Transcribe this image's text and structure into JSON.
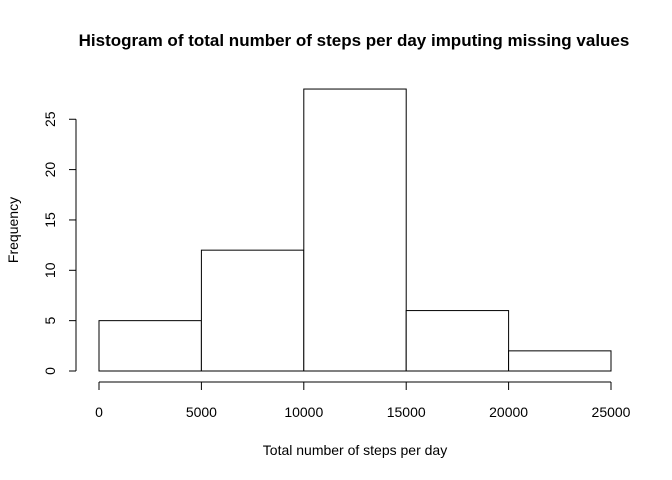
{
  "chart_data": {
    "type": "bar",
    "title": "Histogram of total number of steps per day imputing missing values",
    "xlabel": "Total number of steps per day",
    "ylabel": "Frequency",
    "bins": [
      {
        "from": 0,
        "to": 5000,
        "count": 5
      },
      {
        "from": 5000,
        "to": 10000,
        "count": 12
      },
      {
        "from": 10000,
        "to": 15000,
        "count": 28
      },
      {
        "from": 15000,
        "to": 20000,
        "count": 6
      },
      {
        "from": 20000,
        "to": 25000,
        "count": 2
      }
    ],
    "xticks": [
      0,
      5000,
      10000,
      15000,
      20000,
      25000
    ],
    "yticks": [
      0,
      5,
      10,
      15,
      20,
      25
    ],
    "xlim": [
      0,
      25000
    ],
    "ylim": [
      0,
      28
    ],
    "grid": false,
    "legend": "none",
    "bar_fill": "#ffffff",
    "bar_stroke": "#000000"
  }
}
